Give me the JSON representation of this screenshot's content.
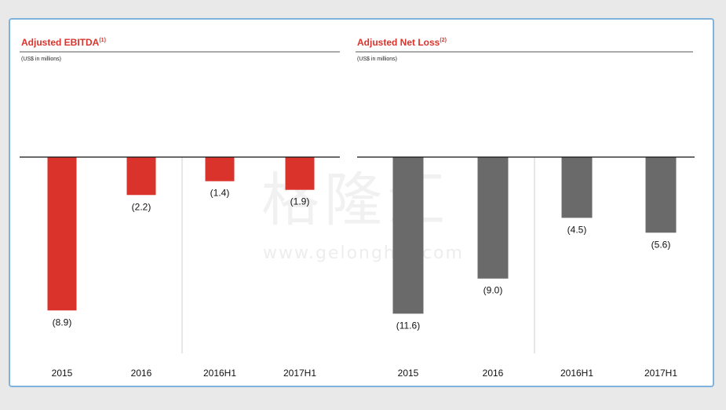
{
  "watermark": {
    "text": "格隆汇",
    "url": "www.gelonghui.com"
  },
  "chart_data": [
    {
      "type": "bar",
      "title": "Adjusted EBITDA",
      "title_note": "(1)",
      "unit_label": "(US$ in millions)",
      "categories": [
        "2015",
        "2016",
        "2016H1",
        "2017H1"
      ],
      "values": [
        -8.9,
        -2.2,
        -1.4,
        -1.9
      ],
      "value_labels": [
        "(8.9)",
        "(2.2)",
        "(1.4)",
        "(1.9)"
      ],
      "color": "#d9332b",
      "ylim": [
        -9.8,
        0
      ]
    },
    {
      "type": "bar",
      "title": "Adjusted Net Loss",
      "title_note": "(2)",
      "unit_label": "(US$ in millions)",
      "categories": [
        "2015",
        "2016",
        "2016H1",
        "2017H1"
      ],
      "values": [
        -11.6,
        -9.0,
        -4.5,
        -5.6
      ],
      "value_labels": [
        "(11.6)",
        "(9.0)",
        "(4.5)",
        "(5.6)"
      ],
      "color": "#6a6a6a",
      "ylim": [
        -12.8,
        0
      ]
    }
  ]
}
